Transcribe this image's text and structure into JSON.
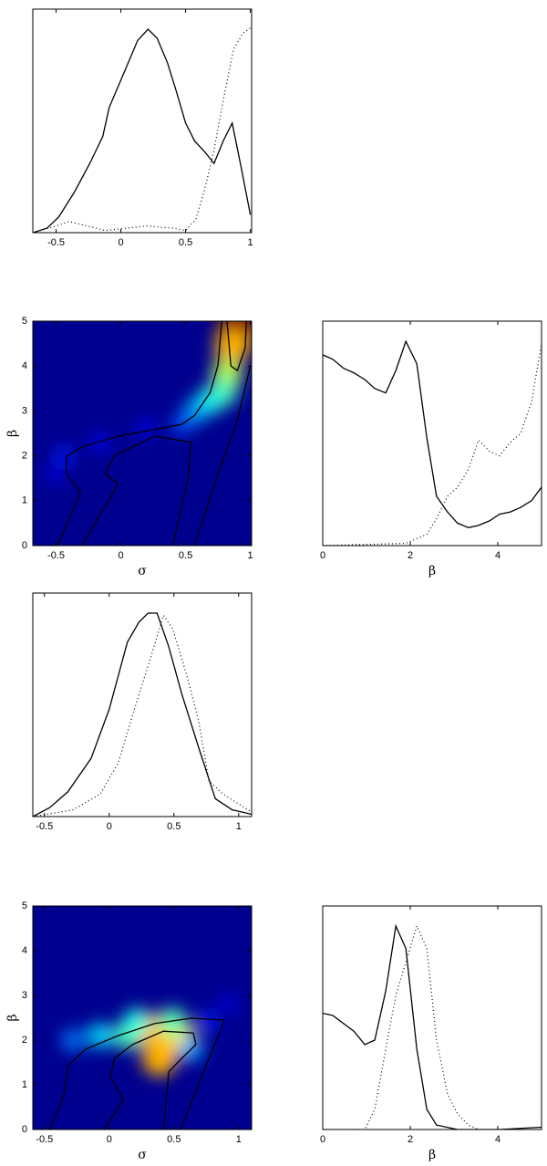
{
  "chart_data": [
    {
      "type": "line",
      "xlim": [
        -0.68,
        1.01
      ],
      "ylim": [
        0,
        1
      ],
      "xticks": [
        -0.5,
        0,
        0.5,
        1
      ],
      "series": [
        {
          "color": "#000000",
          "dash": "solid",
          "x": [
            -0.68,
            -0.57,
            -0.48,
            -0.36,
            -0.24,
            -0.14,
            -0.09,
            0.02,
            0.13,
            0.21,
            0.28,
            0.36,
            0.43,
            0.5,
            0.57,
            0.65,
            0.72,
            0.79,
            0.86,
            0.93,
            1.0
          ],
          "values": [
            0,
            0.02,
            0.07,
            0.18,
            0.31,
            0.43,
            0.56,
            0.71,
            0.86,
            0.91,
            0.87,
            0.76,
            0.63,
            0.49,
            0.41,
            0.36,
            0.31,
            0.41,
            0.49,
            0.29,
            0.08
          ]
        },
        {
          "color": "#000000",
          "dash": "dotted",
          "x": [
            -0.68,
            -0.5,
            -0.4,
            -0.26,
            -0.12,
            0.2,
            0.4,
            0.5,
            0.58,
            0.65,
            0.72,
            0.79,
            0.87,
            0.94,
            1.01
          ],
          "values": [
            0,
            0.03,
            0.05,
            0.03,
            0.01,
            0.03,
            0.02,
            0.01,
            0.06,
            0.2,
            0.37,
            0.59,
            0.82,
            0.89,
            0.92
          ]
        }
      ]
    },
    {
      "type": "heatmap",
      "xlim": [
        -0.68,
        1.01
      ],
      "ylim": [
        0,
        5
      ],
      "xticks": [
        -0.5,
        0,
        0.5,
        1
      ],
      "yticks": [
        0,
        1,
        2,
        3,
        4,
        5
      ],
      "xlabel": "σ",
      "ylabel": "β",
      "background": "#00008f",
      "cells": {
        "x": [
          0.91,
          0.86,
          0.82,
          0.79,
          0.68,
          0.58,
          0.47,
          0.19,
          -0.16,
          -0.44,
          -0.51
        ],
        "y": [
          4.84,
          4.43,
          3.82,
          3.41,
          3.21,
          3.0,
          2.7,
          2.6,
          2.3,
          1.99,
          1.59
        ],
        "z": [
          1.0,
          0.7,
          0.55,
          0.45,
          0.4,
          0.3,
          0.2,
          0.12,
          0.12,
          0.15,
          0.1
        ]
      },
      "contours": [
        {
          "x": [
            -0.49,
            -0.31,
            -0.42,
            -0.42,
            -0.3,
            -0.02,
            0.47,
            0.57,
            0.69,
            0.75,
            0.78
          ],
          "y": [
            0,
            1.18,
            1.59,
            1.99,
            2.2,
            2.44,
            2.7,
            2.9,
            3.41,
            4.02,
            5.0
          ]
        },
        {
          "x": [
            -0.3,
            -0.02,
            -0.12,
            -0.05,
            0.26,
            0.54,
            0.52,
            0.4
          ],
          "y": [
            0,
            1.38,
            1.59,
            2.0,
            2.44,
            2.3,
            1.5,
            0
          ]
        },
        {
          "x": [
            0.57,
            0.75,
            0.9,
            1.0
          ],
          "y": [
            0,
            1.59,
            2.8,
            4.0
          ]
        },
        {
          "x": [
            0.82,
            0.85,
            0.9,
            0.96,
            0.97
          ],
          "y": [
            5.0,
            4.0,
            3.9,
            4.4,
            5.0
          ]
        }
      ]
    },
    {
      "type": "line",
      "xlim": [
        0,
        5
      ],
      "ylim": [
        0,
        1
      ],
      "xticks": [
        0,
        2,
        4
      ],
      "xlabel": "β",
      "series": [
        {
          "color": "#000000",
          "dash": "solid",
          "x": [
            0,
            0.23,
            0.48,
            0.71,
            0.96,
            1.19,
            1.44,
            1.67,
            1.9,
            2.15,
            2.38,
            2.6,
            2.85,
            3.08,
            3.33,
            3.56,
            3.81,
            4.04,
            4.29,
            4.52,
            4.77,
            5
          ],
          "values": [
            0.85,
            0.83,
            0.79,
            0.77,
            0.74,
            0.7,
            0.68,
            0.78,
            0.91,
            0.81,
            0.48,
            0.22,
            0.15,
            0.1,
            0.08,
            0.09,
            0.11,
            0.14,
            0.15,
            0.17,
            0.2,
            0.26
          ]
        },
        {
          "color": "#000000",
          "dash": "dotted",
          "x": [
            0,
            1.9,
            2.38,
            2.6,
            2.85,
            3.08,
            3.33,
            3.56,
            3.81,
            4.04,
            4.29,
            4.52,
            4.77,
            5
          ],
          "values": [
            0,
            0.01,
            0.05,
            0.12,
            0.22,
            0.26,
            0.34,
            0.47,
            0.42,
            0.4,
            0.46,
            0.5,
            0.64,
            0.9
          ]
        }
      ]
    },
    {
      "type": "line",
      "xlim": [
        -0.59,
        1.1
      ],
      "ylim": [
        0,
        1
      ],
      "xticks": [
        -0.5,
        0,
        0.5,
        1
      ],
      "series": [
        {
          "color": "#000000",
          "dash": "solid",
          "x": [
            -0.59,
            -0.46,
            -0.32,
            -0.14,
            0,
            0.14,
            0.23,
            0.3,
            0.37,
            0.46,
            0.56,
            0.69,
            0.82,
            0.95,
            1.1
          ],
          "values": [
            0,
            0.04,
            0.11,
            0.26,
            0.48,
            0.78,
            0.87,
            0.91,
            0.91,
            0.76,
            0.55,
            0.31,
            0.08,
            0.03,
            0.01
          ]
        },
        {
          "color": "#000000",
          "dash": "dotted",
          "x": [
            -0.59,
            -0.28,
            -0.07,
            0.07,
            0.21,
            0.32,
            0.42,
            0.49,
            0.6,
            0.69,
            0.77,
            0.88,
            1.1
          ],
          "values": [
            0,
            0.03,
            0.1,
            0.24,
            0.51,
            0.71,
            0.9,
            0.84,
            0.63,
            0.43,
            0.16,
            0.1,
            0.02
          ]
        }
      ]
    },
    {
      "type": "heatmap",
      "xlim": [
        -0.59,
        1.1
      ],
      "ylim": [
        0,
        5
      ],
      "xticks": [
        -0.5,
        0,
        0.5,
        1
      ],
      "yticks": [
        0,
        1,
        2,
        3,
        4,
        5
      ],
      "xlabel": "σ",
      "ylabel": "β",
      "background": "#00008f",
      "cells": {
        "x": [
          0.42,
          0.32,
          0.53,
          0.39,
          0.14,
          -0.07,
          0.21,
          0.49,
          -0.28,
          0.63,
          0.77,
          0.92
        ],
        "y": [
          2.0,
          2.2,
          2.1,
          1.59,
          2.1,
          2.1,
          2.41,
          2.41,
          2.0,
          1.8,
          2.41,
          2.82
        ],
        "z": [
          1.0,
          0.7,
          0.65,
          0.7,
          0.45,
          0.35,
          0.4,
          0.45,
          0.25,
          0.3,
          0.15,
          0.1
        ]
      },
      "contours": [
        {
          "x": [
            -0.46,
            -0.35,
            -0.32,
            -0.18,
            0.07,
            0.35,
            0.63,
            0.89
          ],
          "y": [
            0,
            0.78,
            1.43,
            1.8,
            2.1,
            2.37,
            2.49,
            2.45
          ]
        },
        {
          "x": [
            0.55,
            0.89
          ],
          "y": [
            0,
            2.45
          ]
        },
        {
          "x": [
            -0.04,
            0.11,
            0.01,
            0.04,
            0.18,
            0.42,
            0.65,
            0.67,
            0.56,
            0.46,
            0.42
          ],
          "y": [
            0,
            0.67,
            1.18,
            1.59,
            1.9,
            2.2,
            2.16,
            1.9,
            1.59,
            1.29,
            0
          ]
        }
      ]
    },
    {
      "type": "line",
      "xlim": [
        0,
        5
      ],
      "ylim": [
        0,
        1
      ],
      "xticks": [
        0,
        2,
        4
      ],
      "xlabel": "β",
      "series": [
        {
          "color": "#000000",
          "dash": "solid",
          "x": [
            0,
            0.23,
            0.71,
            0.96,
            1.19,
            1.44,
            1.67,
            1.9,
            2.15,
            2.38,
            2.6,
            3.08,
            4.04,
            5
          ],
          "values": [
            0.52,
            0.51,
            0.44,
            0.38,
            0.4,
            0.62,
            0.91,
            0.81,
            0.36,
            0.09,
            0.02,
            0,
            0,
            0.01
          ]
        },
        {
          "color": "#000000",
          "dash": "dotted",
          "x": [
            0,
            0.96,
            1.19,
            1.44,
            1.67,
            1.9,
            2.15,
            2.38,
            2.6,
            2.85,
            3.08,
            3.33,
            3.56
          ],
          "values": [
            0,
            0,
            0.09,
            0.36,
            0.6,
            0.75,
            0.91,
            0.81,
            0.4,
            0.16,
            0.07,
            0.02,
            0
          ]
        }
      ]
    }
  ]
}
